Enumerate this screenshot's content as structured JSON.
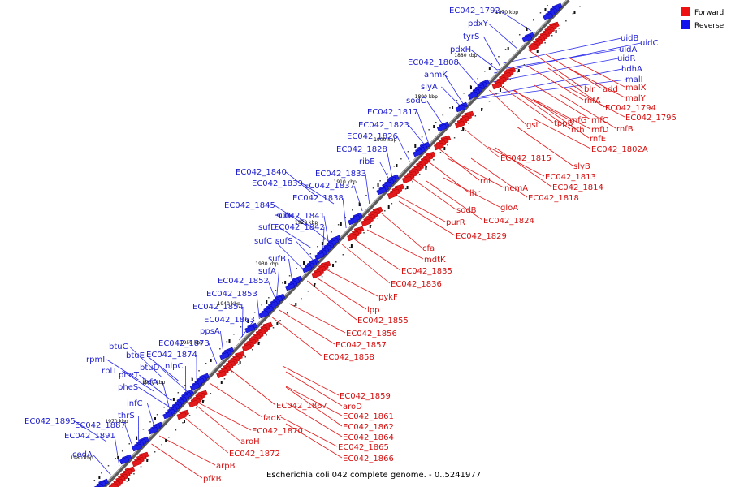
{
  "caption": "Escherichia coli 042 complete genome. - 0..5241977",
  "colors": {
    "forward": "#e31a1c",
    "reverse": "#1f22e8",
    "backbone": "#555555",
    "forward_line": "#e31a1c",
    "reverse_line": "#2a2aee"
  },
  "legend": [
    {
      "label": "Forward",
      "color": "#ee1111"
    },
    {
      "label": "Reverse",
      "color": "#1111ee"
    }
  ],
  "kbp_ticks": [
    "1870 kbp",
    "1880 kbp",
    "1890 kbp",
    "1900 kbp",
    "1910 kbp",
    "1920 kbp",
    "1930 kbp",
    "1940 kbp",
    "1950 kbp",
    "1960 kbp",
    "1970 kbp",
    "1980 kbp"
  ],
  "reverse_genes": [
    "EC042_1792",
    "pdxY",
    "tyrS",
    "pdxH",
    "EC042_1808",
    "anmK",
    "slyA",
    "sodC",
    "EC042_1817",
    "EC042_1823",
    "EC042_1826",
    "EC042_1828",
    "ribE",
    "EC042_1840",
    "EC042_1833",
    "EC042_1839",
    "EC042_1837",
    "EC042_1838",
    "EC042_1845",
    "sufE",
    "EC042_1841",
    "sufD",
    "EC042_1842",
    "sufC",
    "sufS",
    "sufB",
    "sufA",
    "EC042_1852",
    "EC042_1853",
    "EC042_1854",
    "EC042_1863",
    "ppsA",
    "btuC",
    "EC042_1873",
    "btuE",
    "EC042_1874",
    "rpmI",
    "btuD",
    "nlpC",
    "rplT",
    "pheT",
    "ihfA",
    "pheS",
    "infC",
    "thrS",
    "EC042_1895",
    "EC042_1887",
    "EC042_1891",
    "cedA",
    "uidB",
    "uidC",
    "uidA",
    "uidR",
    "hdhA",
    "malI"
  ],
  "forward_genes": [
    "malX",
    "add",
    "blr",
    "malY",
    "rnfA",
    "EC042_1794",
    "EC042_1795",
    "gst",
    "tppB",
    "rnfG",
    "rnfC",
    "nth",
    "rnfD",
    "rnfB",
    "rnfE",
    "EC042_1802A",
    "EC042_1815",
    "slyB",
    "EC042_1813",
    "rnt",
    "EC042_1814",
    "nemA",
    "lhr",
    "EC042_1818",
    "gloA",
    "sodB",
    "EC042_1824",
    "purR",
    "EC042_1829",
    "cfa",
    "mdtK",
    "EC042_1835",
    "EC042_1836",
    "pykF",
    "lpp",
    "EC042_1855",
    "EC042_1856",
    "EC042_1857",
    "EC042_1858",
    "EC042_1859",
    "aroD",
    "EC042_1867",
    "EC042_1861",
    "fadK",
    "EC042_1862",
    "EC042_1870",
    "EC042_1864",
    "aroH",
    "EC042_1865",
    "EC042_1866",
    "EC042_1872",
    "arpB",
    "pfkB"
  ]
}
